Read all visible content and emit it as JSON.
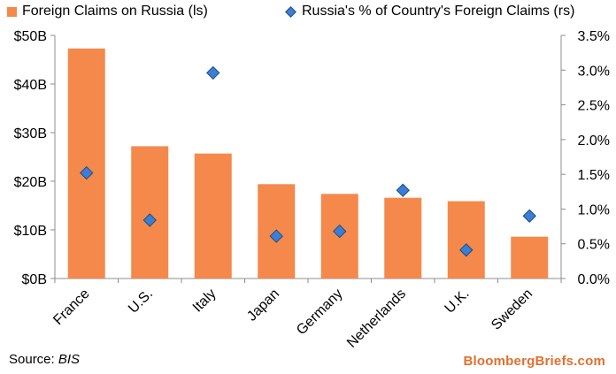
{
  "legend": {
    "bar_label": "Foreign Claims on Russia (ls)",
    "diamond_label": "Russia's % of Country's Foreign Claims (rs)"
  },
  "source": {
    "prefix": "Source:",
    "name": "BIS"
  },
  "brand": "BloombergBriefs.com",
  "colors": {
    "bar": "#f4894b",
    "diamond_fill": "#3b7dd8",
    "diamond_stroke": "#1f4e79",
    "brand": "#e0702e",
    "axis": "#8c8c8c"
  },
  "chart_data": {
    "type": "bar",
    "categories": [
      "France",
      "U.S.",
      "Italy",
      "Japan",
      "Germany",
      "Netherlands",
      "U.K.",
      "Sweden"
    ],
    "series": [
      {
        "name": "Foreign Claims on Russia (ls)",
        "kind": "bar",
        "axis": "left",
        "values": [
          47.3,
          27.2,
          25.7,
          19.4,
          17.4,
          16.6,
          15.9,
          8.6
        ]
      },
      {
        "name": "Russia's % of Country's Foreign Claims (rs)",
        "kind": "marker",
        "marker": "diamond",
        "axis": "right",
        "values": [
          1.52,
          0.84,
          2.96,
          0.61,
          0.68,
          1.27,
          0.41,
          0.9
        ]
      }
    ],
    "y_left": {
      "lim": [
        0,
        50
      ],
      "ticks": [
        0,
        10,
        20,
        30,
        40,
        50
      ],
      "tick_labels": [
        "$0B",
        "$10B",
        "$20B",
        "$30B",
        "$40B",
        "$50B"
      ]
    },
    "y_right": {
      "lim": [
        0,
        3.5
      ],
      "ticks": [
        0,
        0.5,
        1.0,
        1.5,
        2.0,
        2.5,
        3.0,
        3.5
      ],
      "tick_labels": [
        "0.0%",
        "0.5%",
        "1.0%",
        "1.5%",
        "2.0%",
        "2.5%",
        "3.0%",
        "3.5%"
      ]
    },
    "x_tick_rotation": -45,
    "grid": false,
    "legend_position": "top"
  }
}
